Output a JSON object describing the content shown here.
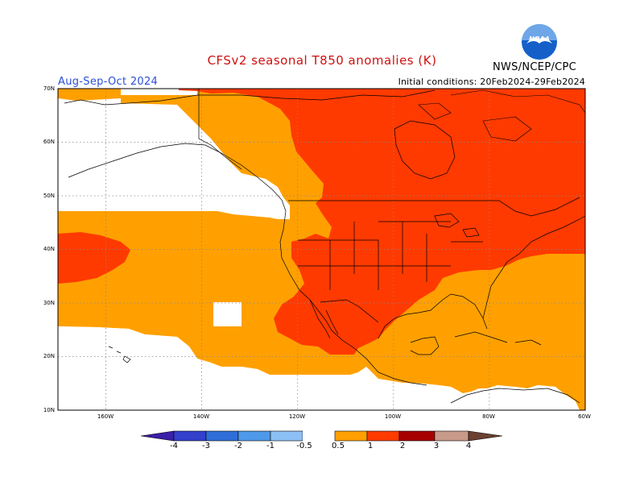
{
  "header": {
    "title": "CFSv2 seasonal T850 anomalies (K)",
    "agency": "NWS/NCEP/CPC",
    "logo_text": "NOAA",
    "season": "Aug-Sep-Oct 2024",
    "initial_conditions": "Initial conditions: 20Feb2024-29Feb2024"
  },
  "map": {
    "lat_labels": [
      "70N",
      "60N",
      "50N",
      "40N",
      "30N",
      "20N",
      "10N"
    ],
    "lon_labels": [
      "160W",
      "140W",
      "120W",
      "100W",
      "80W",
      "60W"
    ],
    "lat_range": [
      10,
      70
    ],
    "lon_range": [
      -170,
      -60
    ]
  },
  "colorbar": {
    "tick_labels": [
      "-4",
      "-3",
      "-2",
      "-1",
      "-0.5",
      "0.5",
      "1",
      "2",
      "3",
      "4"
    ],
    "colors": [
      "#3a1fa8",
      "#3340cc",
      "#2f6ed8",
      "#4f9ae8",
      "#8cc0f5",
      "#ffffff",
      "#ff9f00",
      "#ff3b00",
      "#a80000",
      "#c89a8a",
      "#6a4030"
    ]
  },
  "colors": {
    "anom_0_5_to_1": "#ffa000",
    "anom_1_to_2": "#ff3a00",
    "title_red": "#d01010",
    "season_blue": "#2a4fd8"
  }
}
